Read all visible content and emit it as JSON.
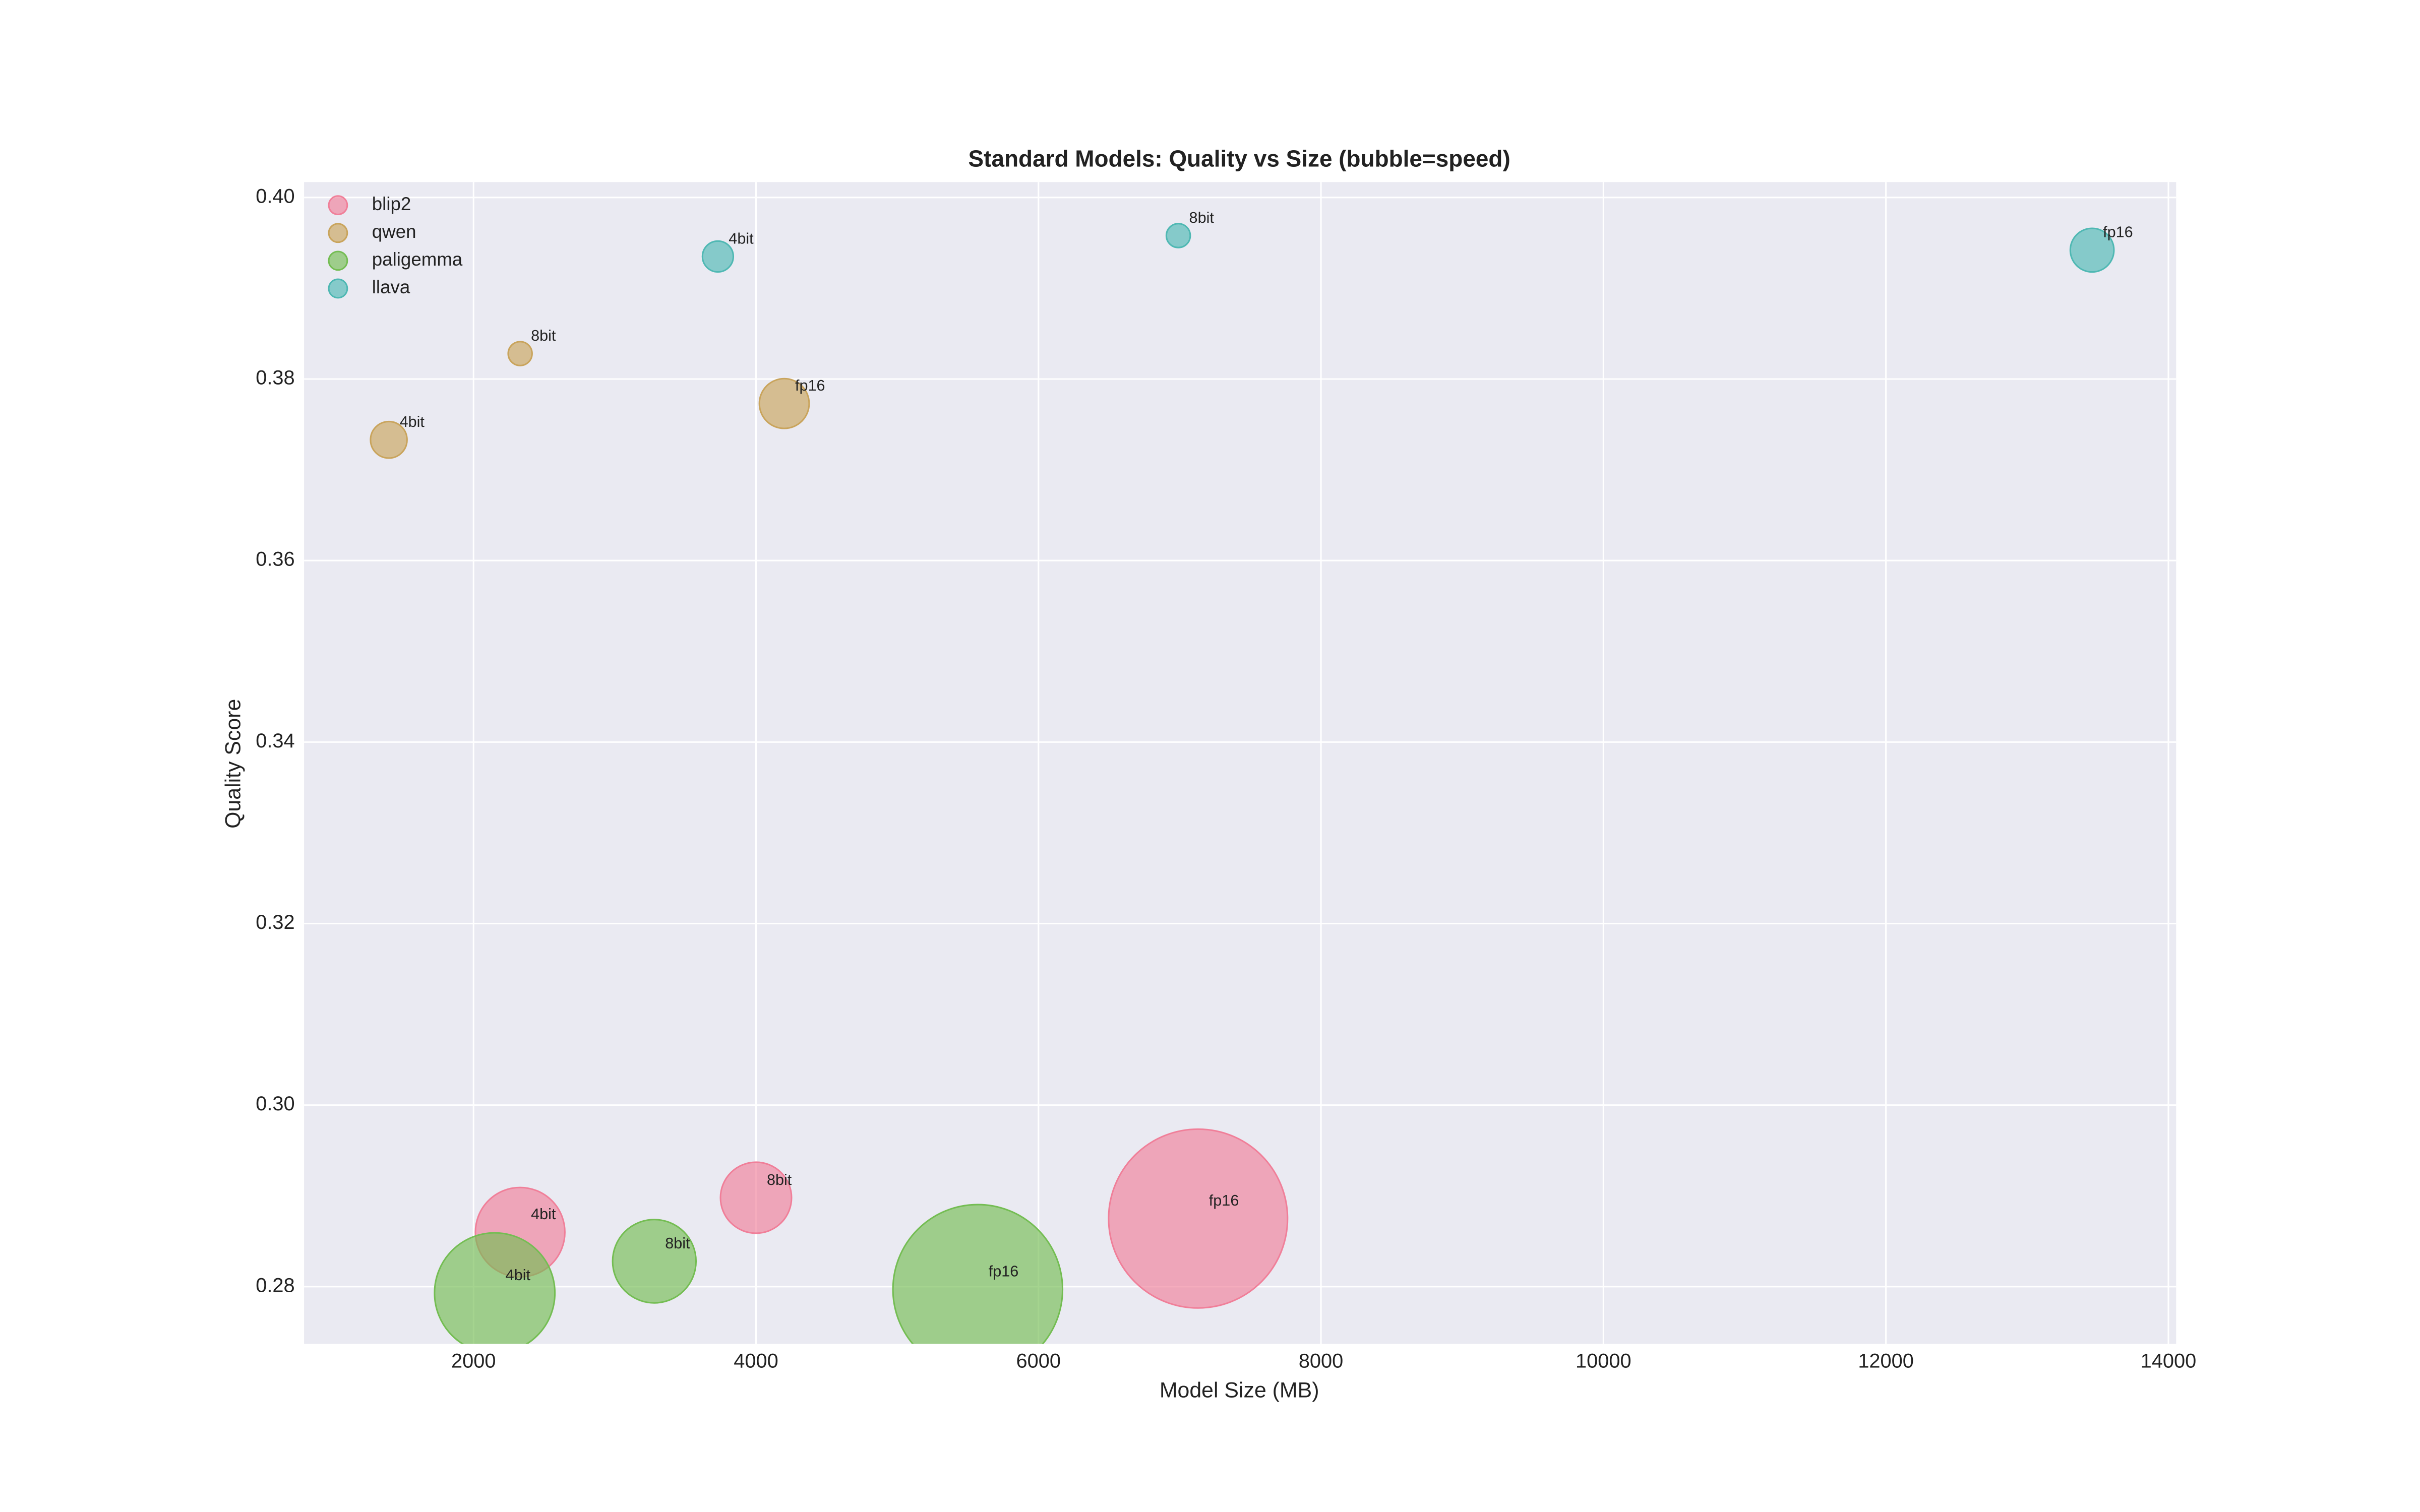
{
  "chart_data": {
    "type": "bubble",
    "title": "Standard Models: Quality vs Size (bubble=speed)",
    "x_label": "Model Size (MB)",
    "y_label": "Quality Score",
    "xlim": [
      800,
      14055
    ],
    "ylim": [
      0.2737,
      0.4017
    ],
    "xticks": [
      2000,
      4000,
      6000,
      8000,
      10000,
      12000,
      14000
    ],
    "yticks": [
      0.28,
      {
        "value": 0.3,
        "label": "0.30"
      },
      0.32,
      0.34,
      0.36,
      0.38,
      {
        "value": 0.4,
        "label": "0.40"
      }
    ],
    "grid": true,
    "legend": "upper left",
    "series": [
      {
        "name": "blip2",
        "color": "#f07f99",
        "x": [
          2330,
          4000,
          7130
        ],
        "values": [
          0.286,
          0.2898,
          0.2875
        ],
        "sizes": [
          84,
          53,
          336
        ],
        "labels": [
          "4bit",
          "8bit",
          "fp16"
        ]
      },
      {
        "name": "qwen",
        "color": "#c9a45c",
        "x": [
          1400,
          2330,
          4200
        ],
        "values": [
          0.3733,
          0.3828,
          0.3773
        ],
        "sizes": [
          14,
          6,
          26
        ],
        "labels": [
          "4bit",
          "8bit",
          "fp16"
        ]
      },
      {
        "name": "paligemma",
        "color": "#74bd53",
        "x": [
          2150,
          3280,
          5570
        ],
        "values": [
          0.2793,
          0.2828,
          0.2797
        ],
        "sizes": [
          152,
          73,
          302
        ],
        "labels": [
          "4bit",
          "8bit",
          "fp16"
        ]
      },
      {
        "name": "llava",
        "color": "#4fb8b3",
        "x": [
          3730,
          6990,
          13460
        ],
        "values": [
          0.3935,
          0.3958,
          0.3942
        ],
        "sizes": [
          10,
          6,
          20
        ],
        "labels": [
          "4bit",
          "8bit",
          "fp16"
        ]
      }
    ]
  }
}
